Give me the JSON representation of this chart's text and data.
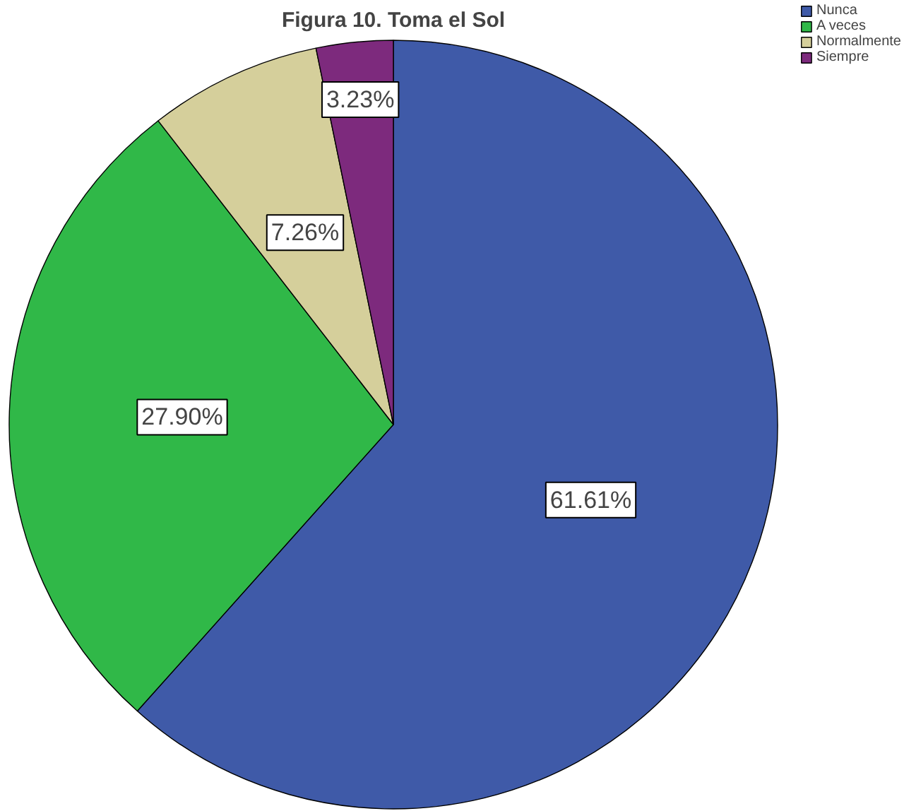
{
  "chart_data": {
    "type": "pie",
    "title": "Figura 10. Toma el Sol",
    "categories": [
      "Nunca",
      "A veces",
      "Normalmente",
      "Siempre"
    ],
    "values": [
      61.61,
      27.9,
      7.26,
      3.23
    ],
    "colors": [
      "#3f5aa8",
      "#30b848",
      "#d5cf9b",
      "#7d2a7d"
    ],
    "value_labels": [
      "61.61%",
      "27.90%",
      "7.26%",
      "3.23%"
    ],
    "legend": "top right"
  }
}
